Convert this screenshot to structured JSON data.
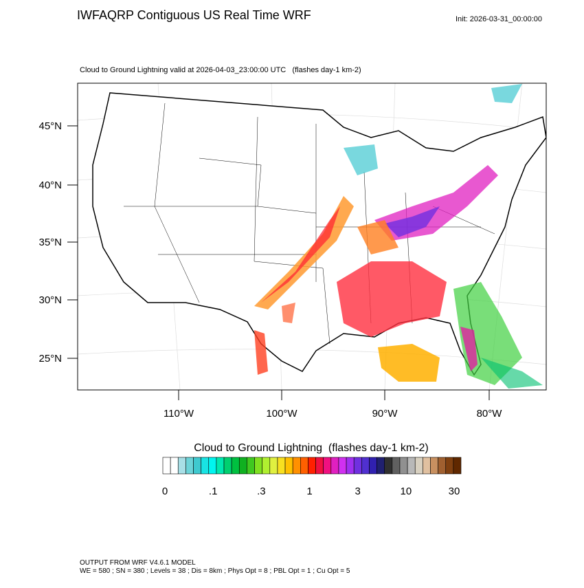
{
  "header": {
    "title": "IWFAQRP Contiguous US Real Time WRF",
    "init": "Init: 2026-03-31_00:00:00"
  },
  "map": {
    "subtitle": "Cloud to Ground Lightning valid at 2026-04-03_23:00:00 UTC   (flashes day-1 km-2)",
    "lat_labels": [
      "45°N",
      "40°N",
      "35°N",
      "30°N",
      "25°N"
    ],
    "lon_labels": [
      "110°W",
      "100°W",
      "90°W",
      "80°W"
    ]
  },
  "colorbar": {
    "title": "Cloud to Ground Lightning  (flashes day-1 km-2)",
    "labels": [
      "0",
      ".1",
      ".3",
      "1",
      "3",
      "10",
      "30"
    ],
    "colors": [
      "#ffffff",
      "#ffffff",
      "#a8dfe6",
      "#6cd3d8",
      "#3fc9cf",
      "#19e3e3",
      "#00f5f0",
      "#00e8b0",
      "#00d070",
      "#00c040",
      "#10b020",
      "#40c820",
      "#80e020",
      "#b0ef30",
      "#e0f040",
      "#f8e020",
      "#ffc000",
      "#ff9000",
      "#ff6000",
      "#ff2000",
      "#f01040",
      "#f01080",
      "#e020c0",
      "#d030f0",
      "#a030f0",
      "#7030e0",
      "#5030d0",
      "#3020b0",
      "#202070",
      "#303030",
      "#606060",
      "#909090",
      "#b8b8b8",
      "#d8d0c0",
      "#e0c0a0",
      "#c89060",
      "#a06030",
      "#804010",
      "#602800"
    ]
  },
  "footer": {
    "line1": "OUTPUT FROM WRF V4.6.1 MODEL",
    "line2": "WE = 580 ; SN = 380 ; Levels = 38 ; Dis = 8km ; Phys Opt = 8 ; PBL Opt = 1 ; Cu Opt = 5"
  }
}
